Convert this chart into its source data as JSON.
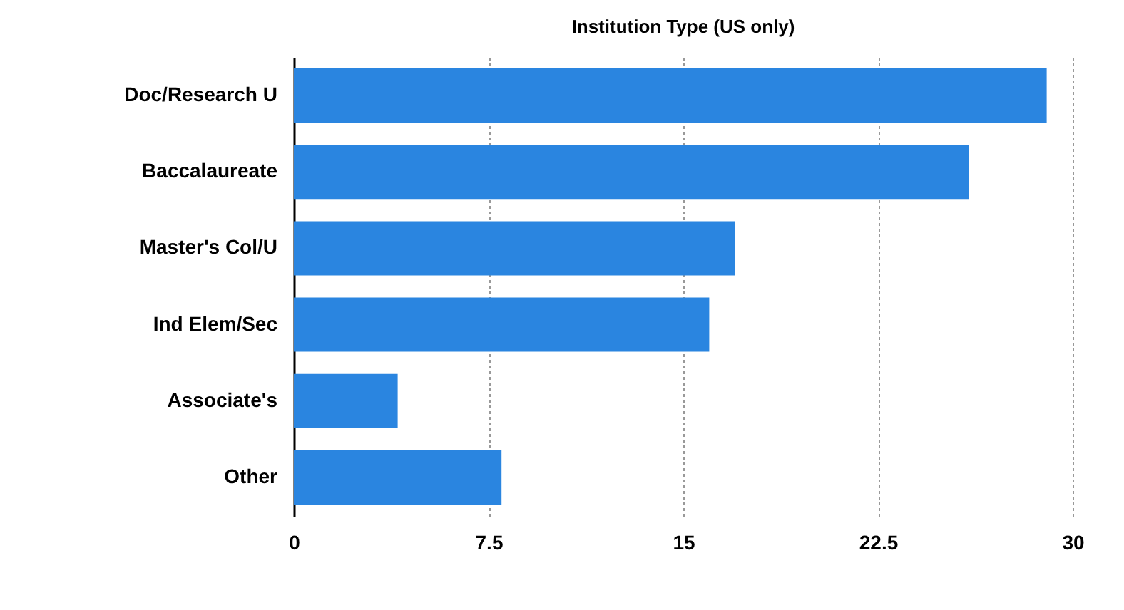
{
  "chart_data": {
    "type": "bar",
    "orientation": "horizontal",
    "title": "Institution Type (US only)",
    "categories": [
      "Doc/Research U",
      "Baccalaureate",
      "Master's Col/U",
      "Ind Elem/Sec",
      "Associate's",
      "Other"
    ],
    "values": [
      29,
      26,
      17,
      16,
      4,
      8
    ],
    "color": "#2a85e0",
    "xlim": [
      0,
      30
    ],
    "xticks": [
      0,
      7.5,
      15,
      22.5,
      30
    ],
    "grid": "x"
  }
}
